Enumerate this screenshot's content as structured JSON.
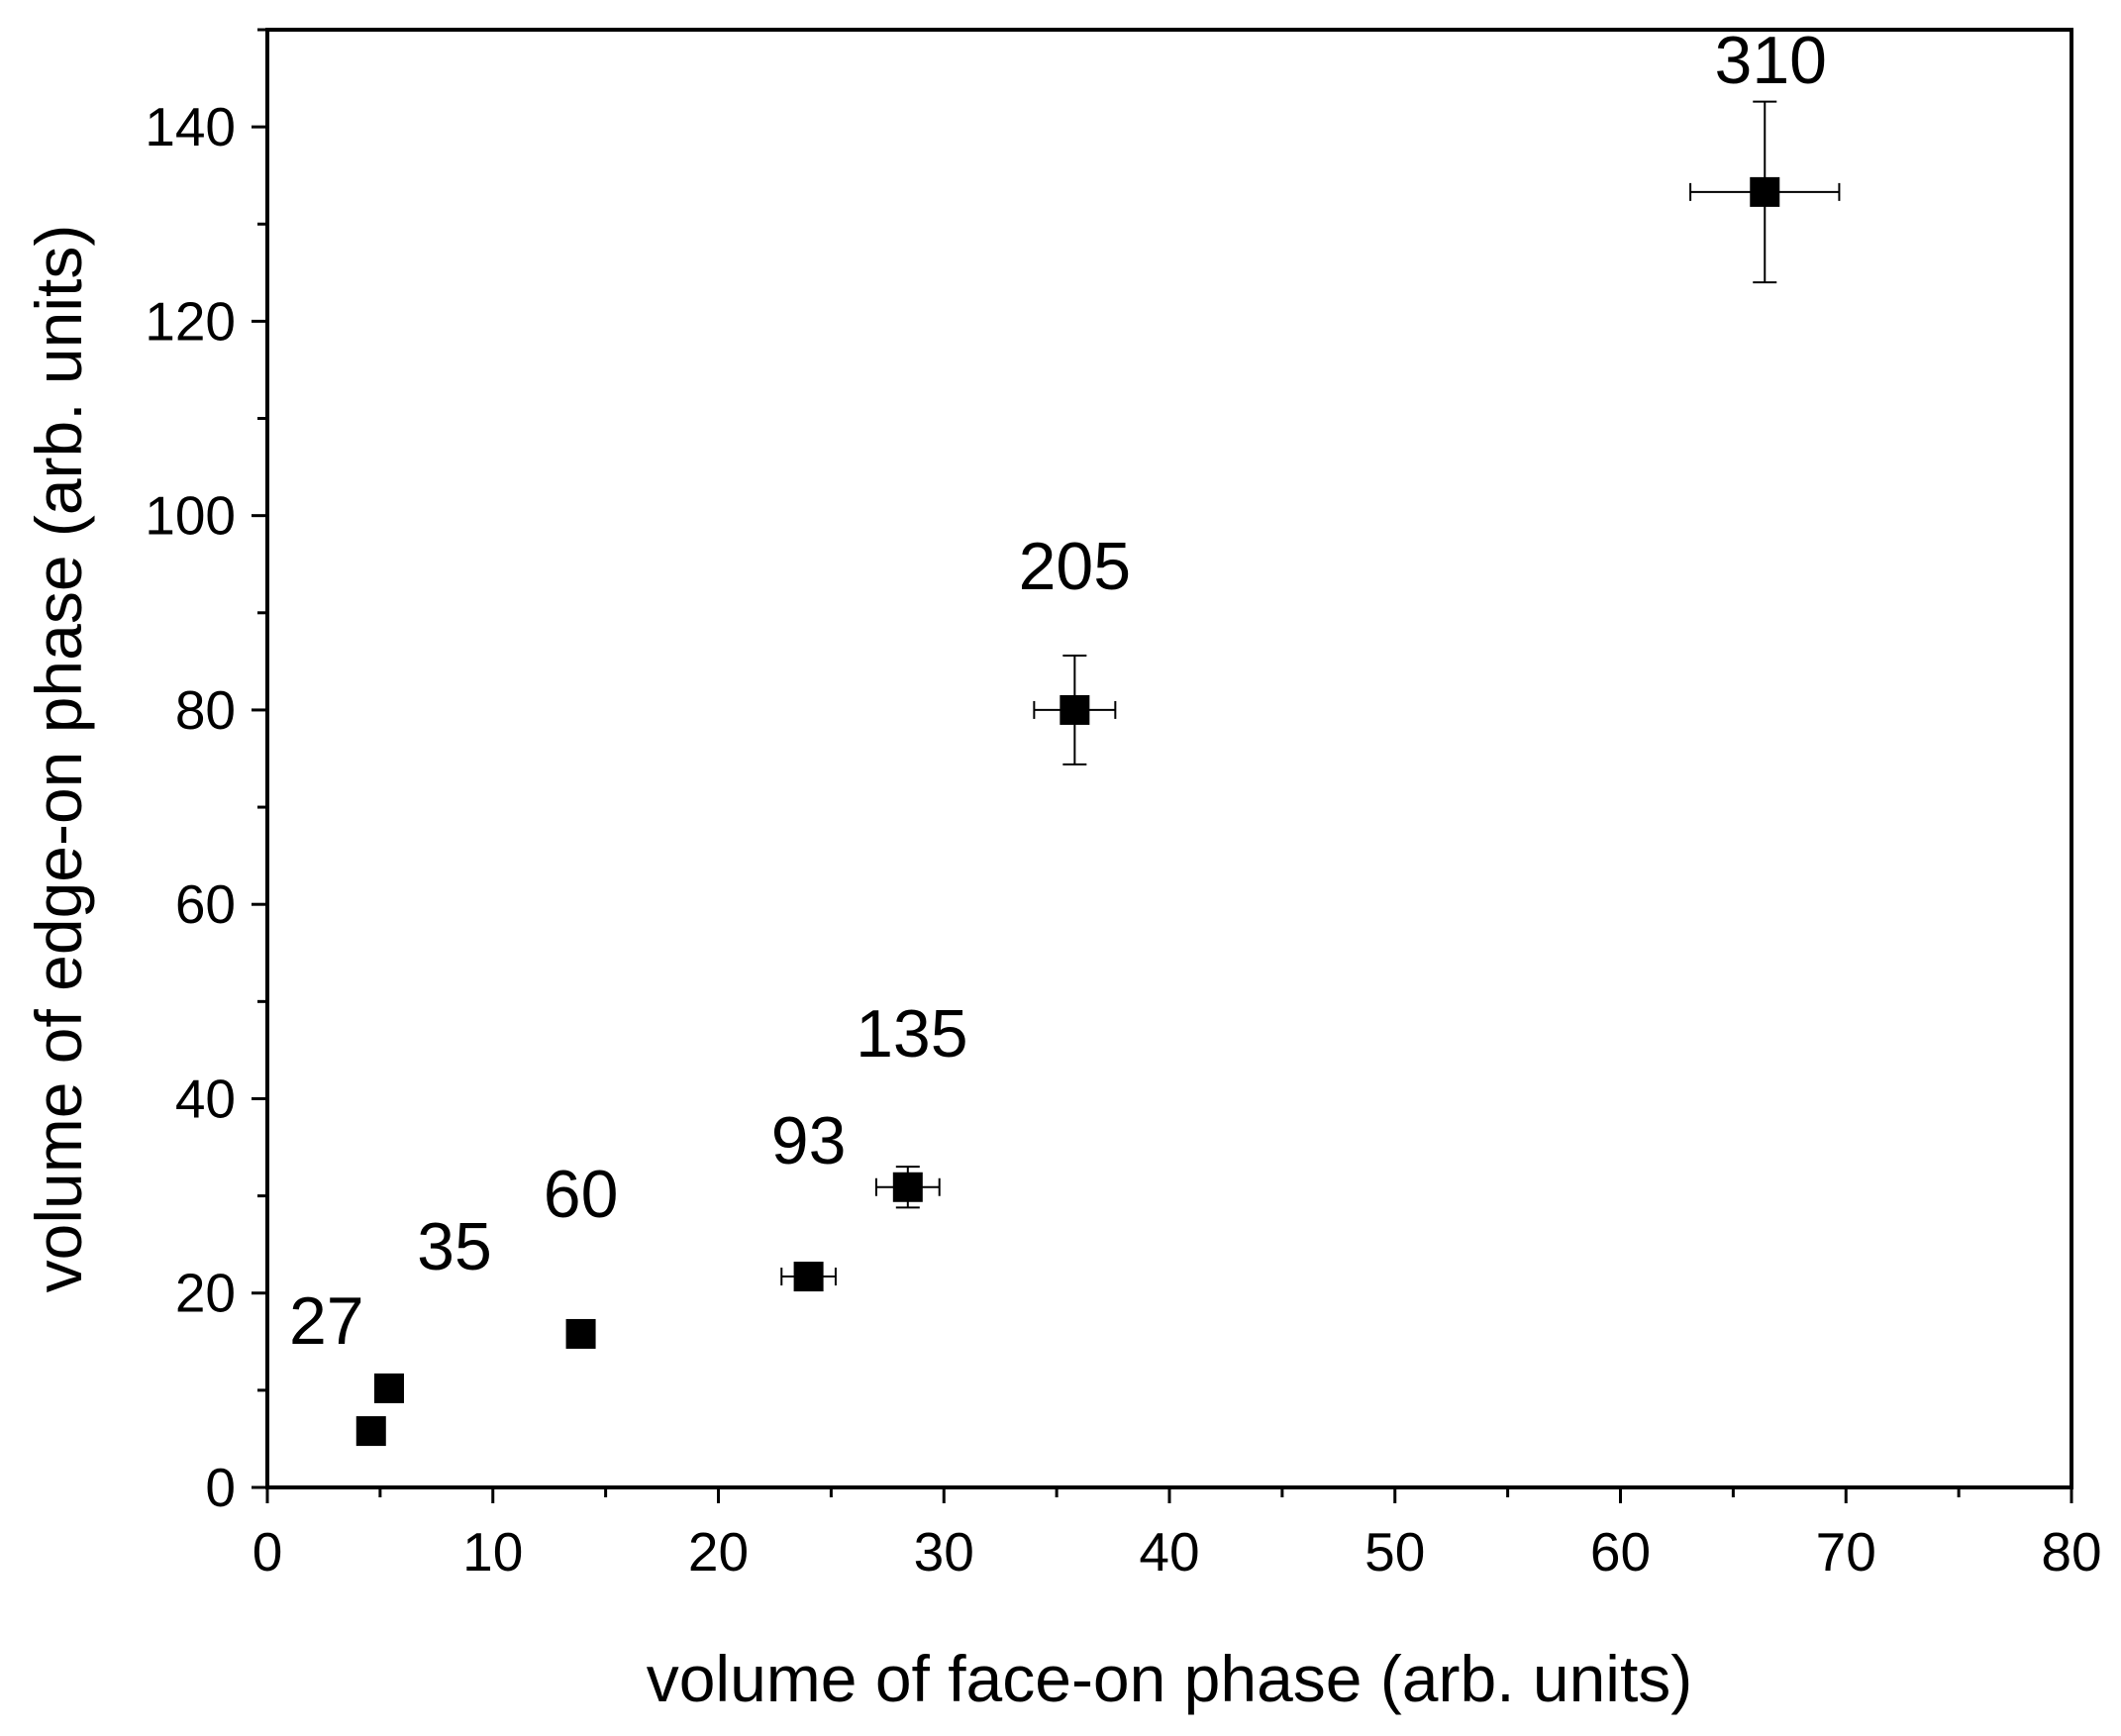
{
  "chart_data": {
    "type": "scatter",
    "xlabel": "volume of face-on phase (arb. units)",
    "ylabel": "volume of edge-on phase (arb. units)",
    "xlim": [
      0,
      80
    ],
    "ylim": [
      0,
      150
    ],
    "xticks": [
      0,
      10,
      20,
      30,
      40,
      50,
      60,
      70,
      80
    ],
    "yticks": [
      0,
      20,
      40,
      60,
      80,
      100,
      120,
      140
    ],
    "grid": false,
    "marker": "square",
    "color": "#000000",
    "points": [
      {
        "label": "27",
        "x": 4.6,
        "y": 5.8,
        "xerr": 0,
        "yerr": 0
      },
      {
        "label": "35",
        "x": 5.4,
        "y": 10.2,
        "xerr": 0,
        "yerr": 0
      },
      {
        "label": "60",
        "x": 13.9,
        "y": 15.8,
        "xerr": 0,
        "yerr": 0
      },
      {
        "label": "93",
        "x": 24.0,
        "y": 21.7,
        "xerr": 1.2,
        "yerr": 0.5
      },
      {
        "label": "135",
        "x": 28.4,
        "y": 30.9,
        "xerr": 1.4,
        "yerr": 2.1
      },
      {
        "label": "205",
        "x": 35.8,
        "y": 80.0,
        "xerr": 1.8,
        "yerr": 5.6
      },
      {
        "label": "310",
        "x": 66.4,
        "y": 133.3,
        "xerr": 3.3,
        "yerr": 9.3
      }
    ]
  }
}
